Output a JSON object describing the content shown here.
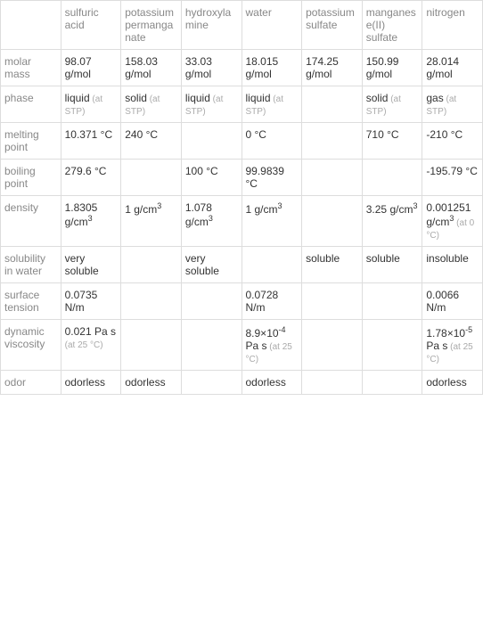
{
  "columns": [
    "",
    "sulfuric acid",
    "potassium permanganate",
    "hydroxylamine",
    "water",
    "potassium sulfate",
    "manganese(II) sulfate",
    "nitrogen"
  ],
  "rows": [
    {
      "label": "molar mass",
      "cells": [
        {
          "text": "98.07 g/mol"
        },
        {
          "text": "158.03 g/mol"
        },
        {
          "text": "33.03 g/mol"
        },
        {
          "text": "18.015 g/mol"
        },
        {
          "text": "174.25 g/mol"
        },
        {
          "text": "150.99 g/mol"
        },
        {
          "text": "28.014 g/mol"
        }
      ]
    },
    {
      "label": "phase",
      "cells": [
        {
          "text": "liquid",
          "note": "(at STP)"
        },
        {
          "text": "solid",
          "note": "(at STP)"
        },
        {
          "text": "liquid",
          "note": "(at STP)"
        },
        {
          "text": "liquid",
          "note": "(at STP)"
        },
        {
          "text": ""
        },
        {
          "text": "solid",
          "note": "(at STP)"
        },
        {
          "text": "gas",
          "note": "(at STP)"
        }
      ]
    },
    {
      "label": "melting point",
      "cells": [
        {
          "text": "10.371 °C"
        },
        {
          "text": "240 °C"
        },
        {
          "text": ""
        },
        {
          "text": "0 °C"
        },
        {
          "text": ""
        },
        {
          "text": "710 °C"
        },
        {
          "text": "-210 °C"
        }
      ]
    },
    {
      "label": "boiling point",
      "cells": [
        {
          "text": "279.6 °C"
        },
        {
          "text": ""
        },
        {
          "text": "100 °C"
        },
        {
          "text": "99.9839 °C"
        },
        {
          "text": ""
        },
        {
          "text": ""
        },
        {
          "text": "-195.79 °C"
        }
      ]
    },
    {
      "label": "density",
      "cells": [
        {
          "html": "1.8305 g/cm<sup>3</sup>"
        },
        {
          "html": "1 g/cm<sup>3</sup>"
        },
        {
          "html": "1.078 g/cm<sup>3</sup>"
        },
        {
          "html": "1 g/cm<sup>3</sup>"
        },
        {
          "text": ""
        },
        {
          "html": "3.25 g/cm<sup>3</sup>"
        },
        {
          "html": "0.001251 g/cm<sup>3</sup>",
          "note": "(at 0 °C)"
        }
      ]
    },
    {
      "label": "solubility in water",
      "cells": [
        {
          "text": "very soluble"
        },
        {
          "text": ""
        },
        {
          "text": "very soluble"
        },
        {
          "text": ""
        },
        {
          "text": "soluble"
        },
        {
          "text": "soluble"
        },
        {
          "text": "insoluble"
        }
      ]
    },
    {
      "label": "surface tension",
      "cells": [
        {
          "text": "0.0735 N/m"
        },
        {
          "text": ""
        },
        {
          "text": ""
        },
        {
          "text": "0.0728 N/m"
        },
        {
          "text": ""
        },
        {
          "text": ""
        },
        {
          "text": "0.0066 N/m"
        }
      ]
    },
    {
      "label": "dynamic viscosity",
      "cells": [
        {
          "text": "0.021 Pa s",
          "note": "(at 25 °C)"
        },
        {
          "text": ""
        },
        {
          "text": ""
        },
        {
          "html": "8.9×10<sup>-4</sup> Pa s",
          "note": "(at 25 °C)"
        },
        {
          "text": ""
        },
        {
          "text": ""
        },
        {
          "html": "1.78×10<sup>-5</sup> Pa s",
          "note": "(at 25 °C)"
        }
      ]
    },
    {
      "label": "odor",
      "cells": [
        {
          "text": "odorless"
        },
        {
          "text": "odorless"
        },
        {
          "text": ""
        },
        {
          "text": "odorless"
        },
        {
          "text": ""
        },
        {
          "text": ""
        },
        {
          "text": "odorless"
        }
      ]
    }
  ]
}
